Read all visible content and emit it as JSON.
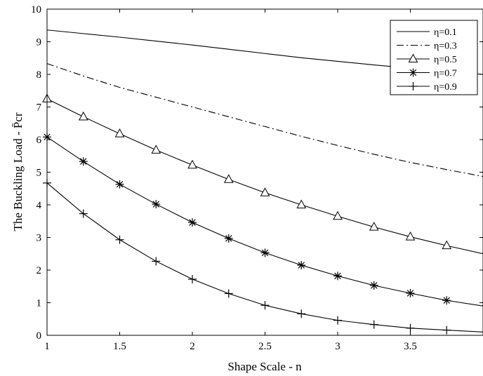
{
  "chart_data": {
    "type": "line",
    "title": "",
    "xlabel": "Shape Scale - n",
    "ylabel": "The Buckling Load - P̄cr",
    "xlim": [
      1,
      4
    ],
    "ylim": [
      0,
      10
    ],
    "xticks": [
      1,
      1.5,
      2,
      2.5,
      3,
      3.5
    ],
    "yticks": [
      0,
      1,
      2,
      3,
      4,
      5,
      6,
      7,
      8,
      9,
      10
    ],
    "grid": false,
    "legend_position": "top-right",
    "series": [
      {
        "name": "η=0.1",
        "line_style": "solid",
        "marker": "none",
        "x": [
          1,
          1.25,
          1.5,
          1.75,
          2,
          2.25,
          2.5,
          2.75,
          3,
          3.25,
          3.5,
          3.75,
          4
        ],
        "y": [
          9.36,
          9.25,
          9.14,
          9.02,
          8.9,
          8.77,
          8.64,
          8.51,
          8.4,
          8.29,
          8.19,
          8.09,
          8.0
        ]
      },
      {
        "name": "η=0.3",
        "line_style": "dashdot",
        "marker": "none",
        "x": [
          1,
          1.25,
          1.5,
          1.75,
          2,
          2.25,
          2.5,
          2.75,
          3,
          3.25,
          3.5,
          3.75,
          4
        ],
        "y": [
          8.33,
          7.95,
          7.6,
          7.3,
          7.0,
          6.7,
          6.4,
          6.1,
          5.82,
          5.55,
          5.3,
          5.08,
          4.87
        ]
      },
      {
        "name": "η=0.5",
        "line_style": "solid",
        "marker": "triangle",
        "x": [
          1,
          1.25,
          1.5,
          1.75,
          2,
          2.25,
          2.5,
          2.75,
          3,
          3.25,
          3.5,
          3.75,
          4
        ],
        "y": [
          7.25,
          6.7,
          6.18,
          5.68,
          5.22,
          4.78,
          4.37,
          4.0,
          3.65,
          3.32,
          3.02,
          2.75,
          2.5
        ]
      },
      {
        "name": "η=0.7",
        "line_style": "solid",
        "marker": "asterisk",
        "x": [
          1,
          1.25,
          1.5,
          1.75,
          2,
          2.25,
          2.5,
          2.75,
          3,
          3.25,
          3.5,
          3.75,
          4
        ],
        "y": [
          6.08,
          5.33,
          4.63,
          4.02,
          3.46,
          2.97,
          2.53,
          2.15,
          1.82,
          1.53,
          1.29,
          1.07,
          0.9
        ]
      },
      {
        "name": "η=0.9",
        "line_style": "solid",
        "marker": "plus",
        "x": [
          1,
          1.25,
          1.5,
          1.75,
          2,
          2.25,
          2.5,
          2.75,
          3,
          3.25,
          3.5,
          3.75,
          4
        ],
        "y": [
          4.67,
          3.73,
          2.93,
          2.27,
          1.72,
          1.28,
          0.92,
          0.66,
          0.46,
          0.33,
          0.22,
          0.16,
          0.1
        ]
      }
    ]
  }
}
